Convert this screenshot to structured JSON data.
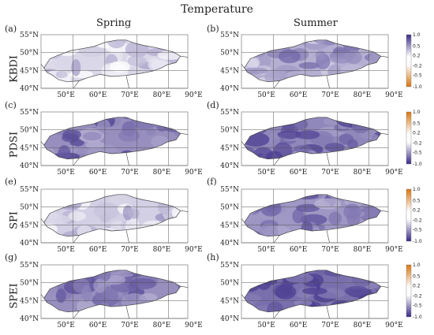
{
  "title": "Temperature",
  "columns": [
    "Spring",
    "Summer"
  ],
  "rows": [
    "KBDI",
    "PDSI",
    "SPI",
    "SPEI"
  ],
  "panel_labels": [
    "(a)",
    "(b)",
    "(c)",
    "(d)",
    "(e)",
    "(f)",
    "(g)",
    "(h)"
  ],
  "lat_ticks": [
    "55°N",
    "50°N",
    "45°N",
    "40°N"
  ],
  "lon_ticks": [
    "50°E",
    "60°E",
    "70°E",
    "80°E",
    "90°E"
  ],
  "colorbar_ticks": [
    "1.0",
    "0.5",
    "0.2",
    "-0.2",
    "-0.5",
    "-1.0"
  ],
  "colorbar_scheme": [
    {
      "row": "KBDI",
      "top": "#3a2a86",
      "bottom": "#d9750d"
    },
    {
      "row": "PDSI",
      "top": "#d9750d",
      "bottom": "#3a2a86"
    },
    {
      "row": "SPI",
      "top": "#d9750d",
      "bottom": "#3a2a86"
    },
    {
      "row": "SPEI",
      "top": "#d9750d",
      "bottom": "#3a2a86"
    }
  ],
  "panel_fill_intensity": [
    0.25,
    0.5,
    0.7,
    0.75,
    0.3,
    0.65,
    0.7,
    0.9
  ],
  "colors": {
    "neg_strong": "#3a2a86",
    "neg_weak": "#c9c3e3",
    "pos_strong": "#d9750d"
  }
}
